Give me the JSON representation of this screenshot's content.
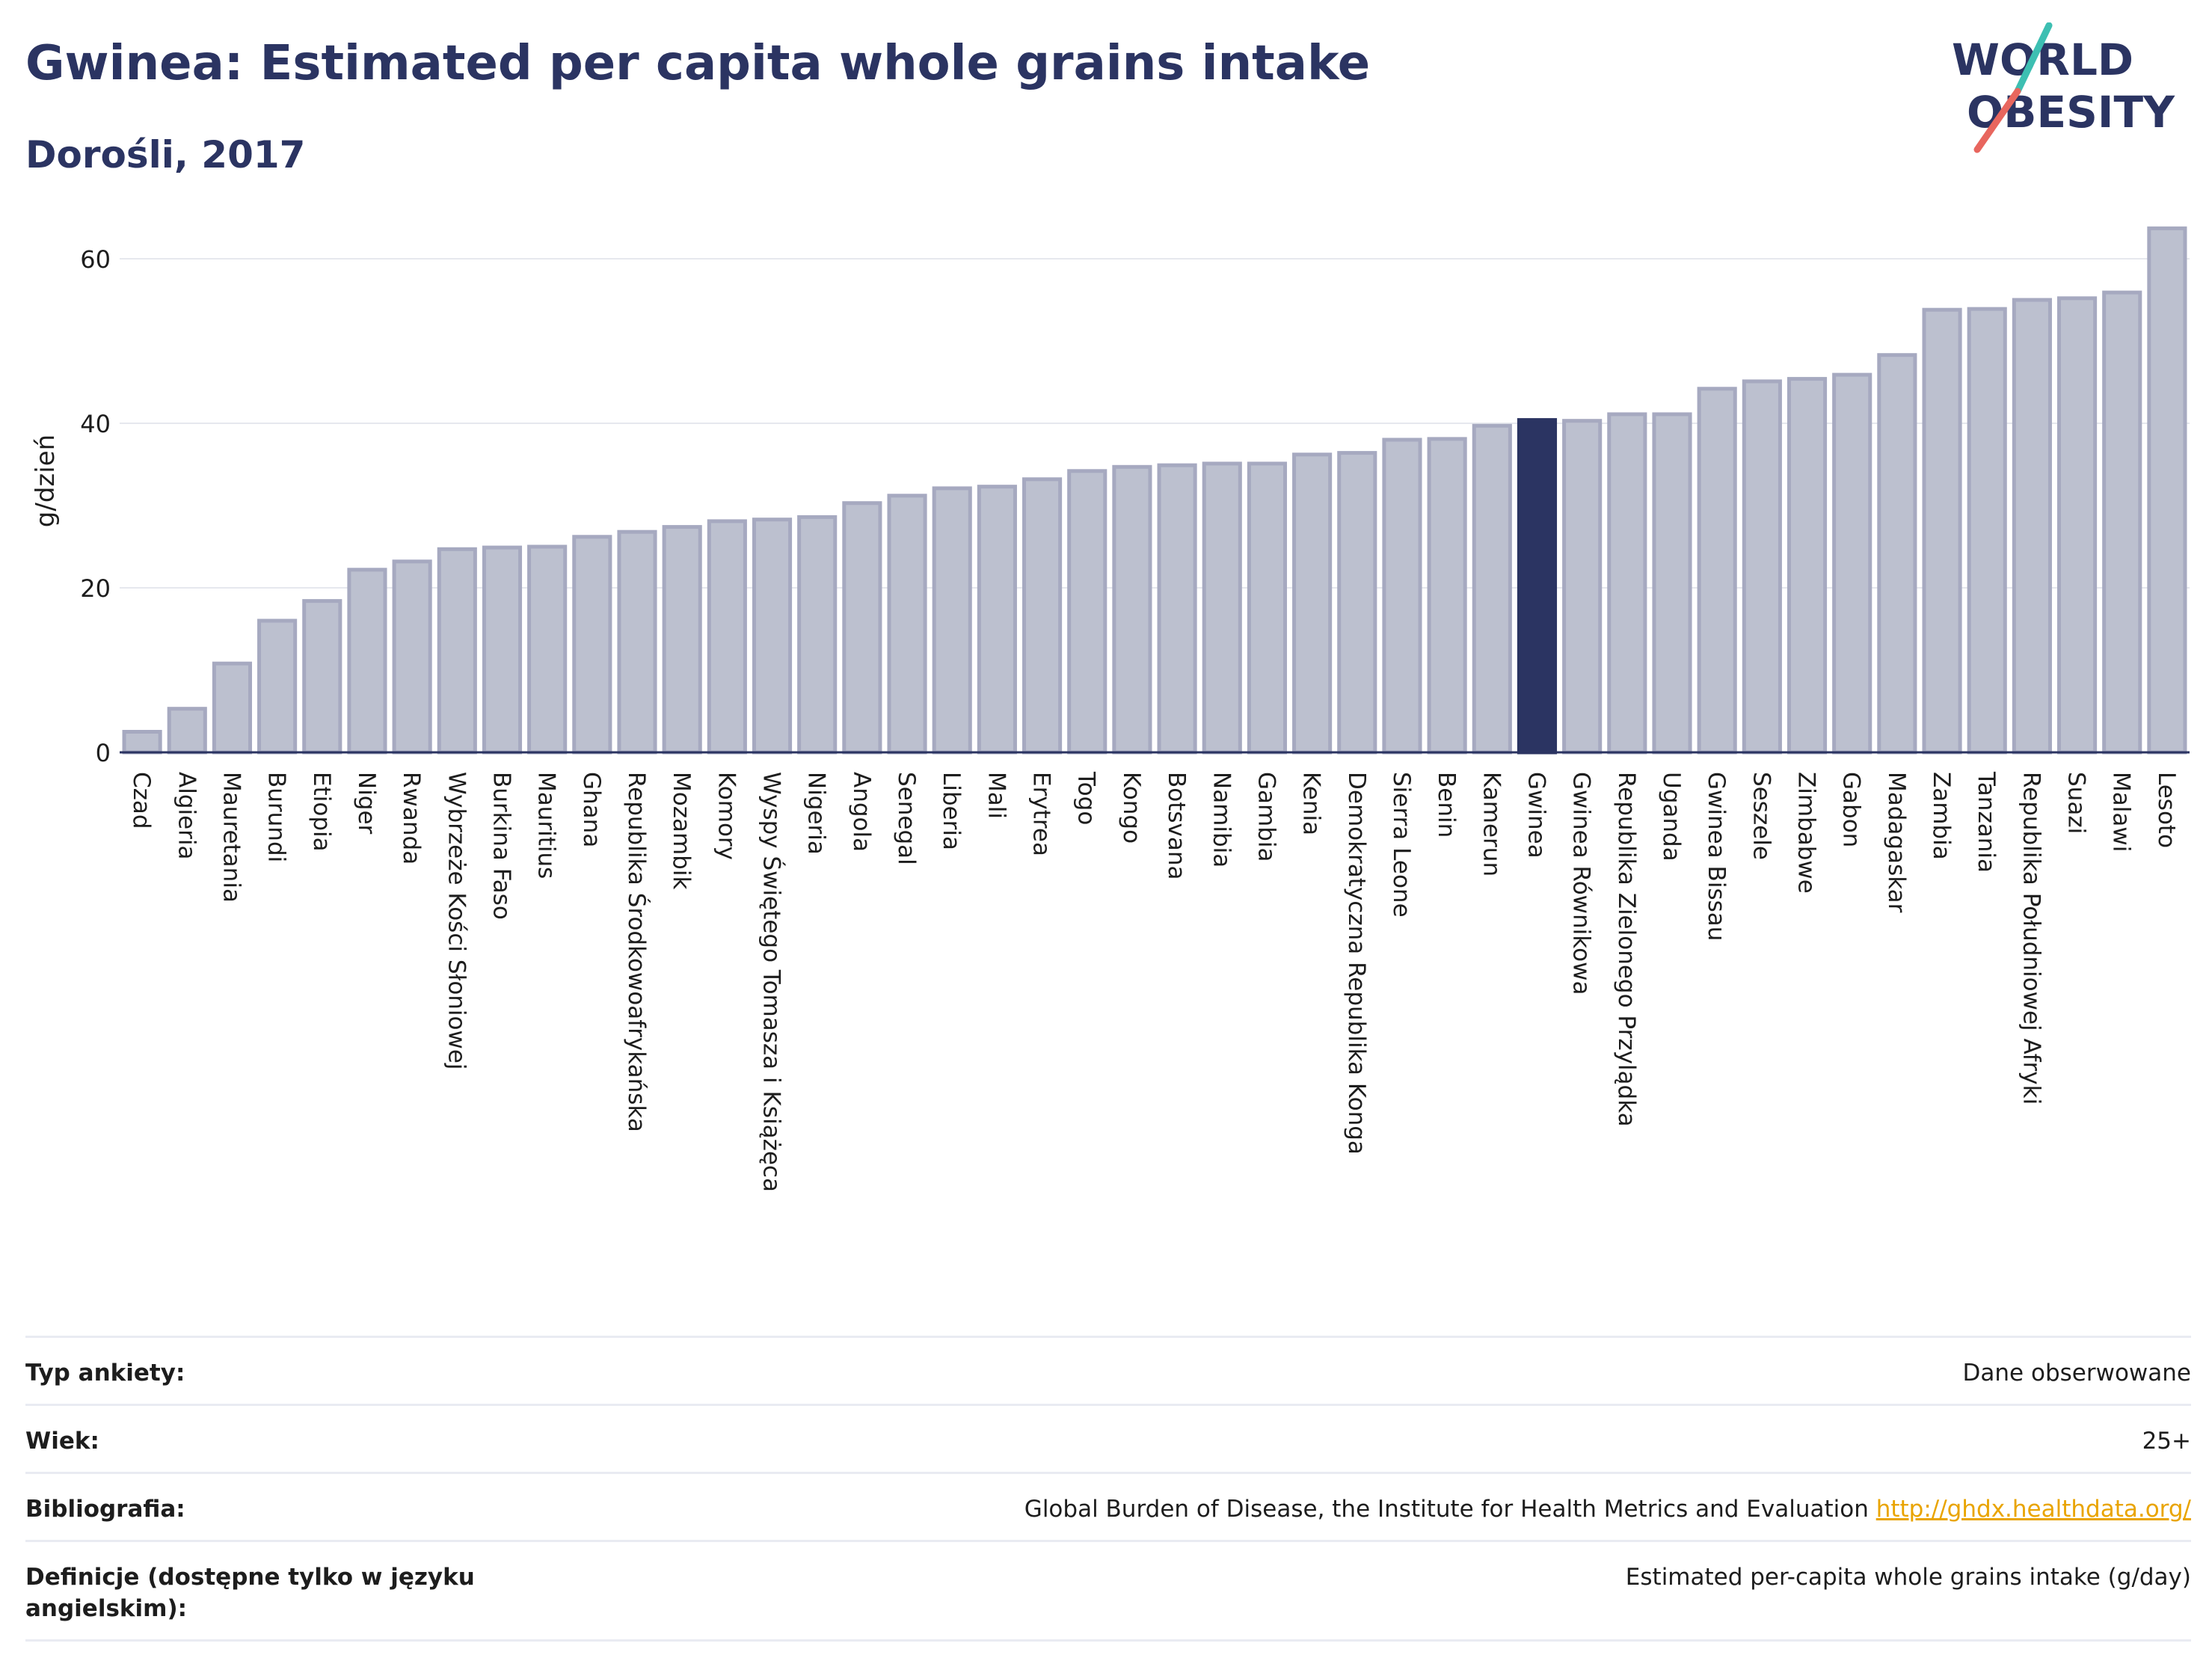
{
  "header": {
    "title": "Gwinea: Estimated per capita whole grains intake",
    "subtitle": "Dorośli, 2017",
    "logo_line1": "WORLD",
    "logo_line2": "OBESITY"
  },
  "colors": {
    "title": "#2b3462",
    "bar": "#bcc0cf",
    "bar_stroke": "#a6a9c0",
    "highlight": "#2b3462",
    "link": "#e9a400",
    "logo_teal": "#3dbfb2",
    "logo_coral": "#e8665e"
  },
  "chart_data": {
    "type": "bar",
    "ylabel": "g/dzień",
    "ylim": [
      0,
      66
    ],
    "yticks": [
      0,
      20,
      40,
      60
    ],
    "grid": true,
    "highlight": "Gwinea",
    "categories": [
      "Czad",
      "Algieria",
      "Mauretania",
      "Burundi",
      "Etiopia",
      "Niger",
      "Rwanda",
      "Wybrzeże Kości Słoniowej",
      "Burkina Faso",
      "Mauritius",
      "Ghana",
      "Republika Środkowoafrykańska",
      "Mozambik",
      "Komory",
      "Wyspy Świętego Tomasza i Książęca",
      "Nigeria",
      "Angola",
      "Senegal",
      "Liberia",
      "Mali",
      "Erytrea",
      "Togo",
      "Kongo",
      "Botsvana",
      "Namibia",
      "Gambia",
      "Kenia",
      "Demokratyczna Republika Konga",
      "Sierra Leone",
      "Benin",
      "Kamerun",
      "Gwinea",
      "Gwinea Równikowa",
      "Republika Zielonego Przylądka",
      "Uganda",
      "Gwinea Bissau",
      "Seszele",
      "Zimbabwe",
      "Gabon",
      "Madagaskar",
      "Zambia",
      "Tanzania",
      "Republika Południowej Afryki",
      "Suazi",
      "Malawi",
      "Lesoto"
    ],
    "values": [
      2.5,
      5.3,
      10.8,
      16.0,
      18.4,
      22.2,
      23.2,
      24.7,
      24.9,
      25.0,
      26.2,
      26.8,
      27.4,
      28.1,
      28.3,
      28.6,
      30.3,
      31.2,
      32.1,
      32.3,
      33.2,
      34.2,
      34.7,
      34.9,
      35.1,
      35.1,
      36.2,
      36.4,
      38.0,
      38.1,
      39.7,
      40.4,
      40.3,
      41.1,
      41.1,
      44.2,
      45.1,
      45.4,
      45.9,
      48.3,
      53.8,
      53.9,
      55.0,
      55.2,
      55.9,
      63.7
    ]
  },
  "footer": {
    "rows": [
      {
        "label": "Typ ankiety:",
        "value": "Dane obserwowane"
      },
      {
        "label": "Wiek:",
        "value": "25+"
      },
      {
        "label": "Bibliografia:",
        "value": "Global Burden of Disease, the Institute for Health Metrics and Evaluation",
        "link": "http://ghdx.healthdata.org/"
      },
      {
        "label": "Definicje (dostępne tylko w języku angielskim):",
        "value": "Estimated per-capita whole grains intake (g/day)"
      }
    ]
  }
}
